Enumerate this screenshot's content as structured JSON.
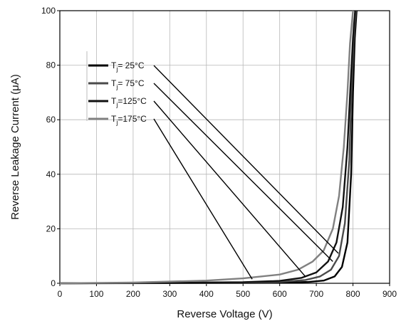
{
  "chart_data": {
    "type": "line",
    "title": "",
    "xlabel": "Reverse Voltage (V)",
    "ylabel": "Reverse Leakage Current (μA)",
    "xlim": [
      0,
      900
    ],
    "ylim": [
      0,
      100
    ],
    "x_ticks": [
      "0",
      "100",
      "200",
      "300",
      "400",
      "500",
      "600",
      "700",
      "800",
      "900"
    ],
    "y_ticks": [
      "0",
      "20",
      "40",
      "60",
      "80",
      "100"
    ],
    "grid": true,
    "legend_position": "upper-left",
    "series": [
      {
        "name": "Tj= 25°C",
        "legend_main": "T",
        "legend_sub": "j",
        "legend_rest": "=  25°C",
        "color": "#000000",
        "x": [
          0,
          300,
          500,
          600,
          680,
          720,
          750,
          770,
          785,
          795,
          800,
          805,
          810
        ],
        "y": [
          0,
          0.05,
          0.1,
          0.2,
          0.5,
          1.0,
          2.5,
          6,
          15,
          40,
          70,
          90,
          100
        ]
      },
      {
        "name": "Tj= 75°C",
        "legend_main": "T",
        "legend_sub": "j",
        "legend_rest": "=  75°C",
        "color": "#4a4a4a",
        "x": [
          0,
          300,
          500,
          600,
          670,
          710,
          740,
          762,
          778,
          790,
          796,
          802,
          808
        ],
        "y": [
          0,
          0.1,
          0.2,
          0.5,
          1.2,
          2.5,
          5,
          10,
          22,
          45,
          70,
          90,
          100
        ]
      },
      {
        "name": "Tj=125°C",
        "legend_main": "T",
        "legend_sub": "j",
        "legend_rest": "=125°C",
        "color": "#111111",
        "x": [
          0,
          300,
          500,
          600,
          660,
          700,
          732,
          755,
          772,
          785,
          793,
          800,
          806
        ],
        "y": [
          0,
          0.2,
          0.4,
          0.9,
          2,
          4,
          8,
          15,
          28,
          50,
          72,
          90,
          100
        ]
      },
      {
        "name": "Tj=175°C",
        "legend_main": "T",
        "legend_sub": "j",
        "legend_rest": "=175°C",
        "color": "#808080",
        "x": [
          0,
          200,
          400,
          500,
          600,
          650,
          690,
          720,
          745,
          762,
          775,
          785,
          792,
          800
        ],
        "y": [
          0,
          0.3,
          1,
          1.8,
          3.2,
          5,
          8,
          12,
          20,
          32,
          50,
          70,
          88,
          100
        ]
      }
    ],
    "annotations": [
      {
        "series": "Tj= 25°C",
        "x": 760,
        "y": 11
      },
      {
        "series": "Tj= 75°C",
        "x": 745,
        "y": 8
      },
      {
        "series": "Tj=125°C",
        "x": 670,
        "y": 2.5
      },
      {
        "series": "Tj=175°C",
        "x": 525,
        "y": 1.5
      }
    ]
  }
}
